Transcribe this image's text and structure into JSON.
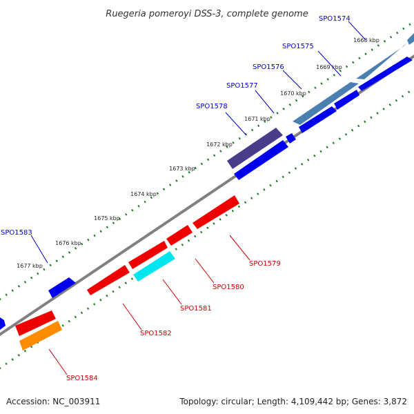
{
  "title": "Ruegeria pomeroyi DSS-3, complete genome",
  "accession": "Accession: NC_003911",
  "topology": "Topology: circular; Length: 4,109,442 bp; Genes: 3,872",
  "colors": {
    "backbone": "#808080",
    "tick": "#1a7a1a",
    "forward_label": "#0000cc",
    "reverse_label": "#cc0000"
  },
  "kbp_labels": [
    "1668 kbp",
    "1669 kbp",
    "1670 kbp",
    "1671 kbp",
    "1672 kbp",
    "1673 kbp",
    "1674 kbp",
    "1675 kbp",
    "1676 kbp",
    "1677 kbp"
  ],
  "forward_genes": [
    {
      "name": "SPO1574",
      "color": "#4a7fb0"
    },
    {
      "name": "SPO1575",
      "color": "#4a7fb0"
    },
    {
      "name": "SPO1576",
      "color": "#0000ee"
    },
    {
      "name": "SPO1577",
      "color": "#0000ee"
    },
    {
      "name": "SPO1578",
      "color": "#483d8b"
    },
    {
      "name": "SPO1583",
      "color": "#0000ee"
    }
  ],
  "reverse_genes": [
    {
      "name": "SPO1579",
      "color": "#ee0000"
    },
    {
      "name": "SPO1580",
      "color": "#ee0000"
    },
    {
      "name": "SPO1581",
      "color": "#00e5ee"
    },
    {
      "name": "SPO1582",
      "color": "#ee0000"
    },
    {
      "name": "SPO1584",
      "color": "#ff8c00"
    }
  ]
}
